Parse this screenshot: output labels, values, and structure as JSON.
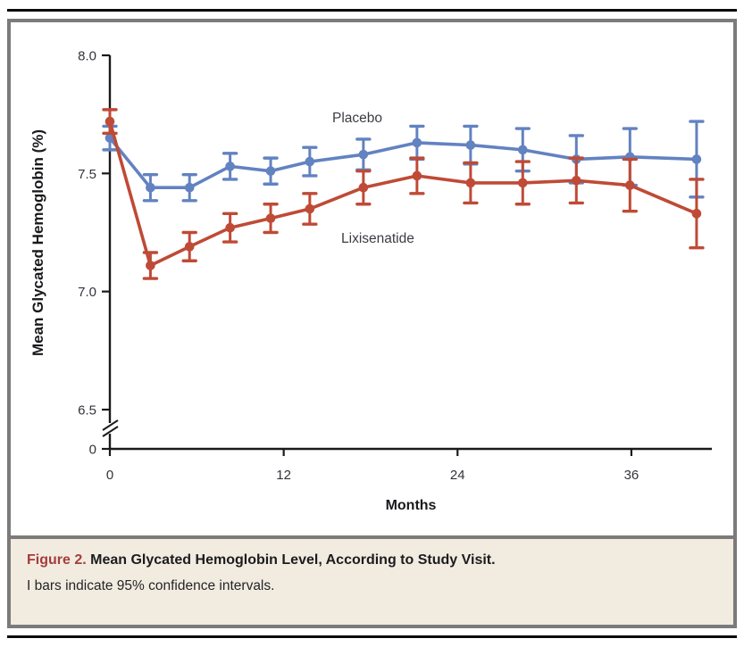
{
  "figure": {
    "caption": {
      "figure_label": "Figure 2.",
      "title": "Mean Glycated Hemoglobin Level, According to Study Visit.",
      "note": "I bars indicate 95% confidence intervals."
    }
  },
  "chart_data": {
    "type": "line",
    "title": "Mean Glycated Hemoglobin Level, According to Study Visit",
    "xlabel": "Months",
    "ylabel": "Mean Glycated Hemoglobin (%)",
    "x_ticks": [
      0,
      12,
      24,
      36
    ],
    "x_tick_labels": [
      "0",
      "12",
      "24",
      "36"
    ],
    "y_tick_labels": [
      "8.0",
      "7.5",
      "7.0",
      "6.5",
      "0"
    ],
    "y_tick_values": [
      8.0,
      7.5,
      7.0,
      6.5
    ],
    "y_axis_break": true,
    "ylim": [
      6.5,
      8.0
    ],
    "xlim": [
      0,
      41.5
    ],
    "grid": false,
    "legend_position": "inline-labels",
    "error_bars": "95% confidence intervals",
    "x_months": [
      0,
      2.8,
      5.5,
      8.3,
      11.1,
      13.8,
      17.5,
      21.2,
      24.9,
      28.5,
      32.2,
      35.9,
      40.5
    ],
    "series": [
      {
        "name": "Placebo",
        "color": "#6282c1",
        "values": [
          7.65,
          7.44,
          7.44,
          7.53,
          7.51,
          7.55,
          7.58,
          7.63,
          7.62,
          7.6,
          7.56,
          7.57,
          7.56
        ],
        "ci_half_width": [
          0.05,
          0.055,
          0.055,
          0.055,
          0.055,
          0.06,
          0.065,
          0.07,
          0.08,
          0.09,
          0.1,
          0.12,
          0.16
        ]
      },
      {
        "name": "Lixisenatide",
        "color": "#bf4a36",
        "values": [
          7.72,
          7.11,
          7.19,
          7.27,
          7.31,
          7.35,
          7.44,
          7.49,
          7.46,
          7.46,
          7.47,
          7.45,
          7.33
        ],
        "ci_half_width": [
          0.05,
          0.055,
          0.06,
          0.06,
          0.06,
          0.065,
          0.07,
          0.075,
          0.085,
          0.09,
          0.095,
          0.11,
          0.145
        ]
      }
    ]
  },
  "colors": {
    "frame_gray": "#7b7b7b",
    "caption_bg": "#f2ece0",
    "figure_label_red": "#a53c3e",
    "rule_black": "#0a0a0a",
    "axis": "#1a1a1a",
    "tick_text": "#33333b",
    "series_label_text": "#3c3c44"
  }
}
